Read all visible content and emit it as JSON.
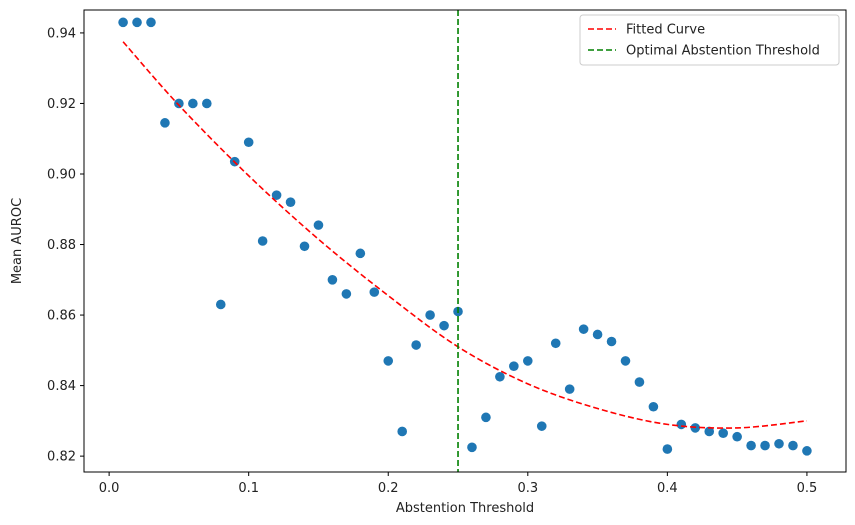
{
  "chart_data": {
    "type": "scatter",
    "xlabel": "Abstention Threshold",
    "ylabel": "Mean AUROC",
    "xlim": [
      -0.018,
      0.528
    ],
    "ylim": [
      0.8155,
      0.9465
    ],
    "xticks": [
      0,
      0.1,
      0.2,
      0.3,
      0.4,
      0.5
    ],
    "xtick_labels": [
      "0.0",
      "0.1",
      "0.2",
      "0.3",
      "0.4",
      "0.5"
    ],
    "yticks": [
      0.82,
      0.84,
      0.86,
      0.88,
      0.9,
      0.92,
      0.94
    ],
    "ytick_labels": [
      "0.82",
      "0.84",
      "0.86",
      "0.88",
      "0.90",
      "0.92",
      "0.94"
    ],
    "grid": false,
    "legend_position": "top-right",
    "points": {
      "color": "#1f77b4",
      "x": [
        0.01,
        0.02,
        0.03,
        0.04,
        0.05,
        0.06,
        0.07,
        0.08,
        0.09,
        0.1,
        0.11,
        0.12,
        0.13,
        0.14,
        0.15,
        0.16,
        0.17,
        0.18,
        0.19,
        0.2,
        0.21,
        0.22,
        0.23,
        0.24,
        0.25,
        0.26,
        0.27,
        0.28,
        0.29,
        0.3,
        0.31,
        0.32,
        0.33,
        0.34,
        0.35,
        0.36,
        0.37,
        0.38,
        0.39,
        0.4,
        0.41,
        0.42,
        0.43,
        0.44,
        0.45,
        0.46,
        0.47,
        0.48,
        0.49,
        0.5
      ],
      "y": [
        0.943,
        0.943,
        0.943,
        0.9145,
        0.92,
        0.92,
        0.92,
        0.863,
        0.9035,
        0.909,
        0.881,
        0.894,
        0.892,
        0.8795,
        0.8855,
        0.87,
        0.866,
        0.8775,
        0.8665,
        0.847,
        0.827,
        0.8515,
        0.86,
        0.857,
        0.861,
        0.8225,
        0.831,
        0.8425,
        0.8455,
        0.847,
        0.8285,
        0.852,
        0.839,
        0.856,
        0.8545,
        0.8525,
        0.847,
        0.841,
        0.834,
        0.822,
        0.829,
        0.828,
        0.827,
        0.8265,
        0.8255,
        0.823,
        0.823,
        0.8235,
        0.823,
        0.8215
      ]
    },
    "fitted_curve": {
      "name": "Fitted Curve",
      "color": "#ff0000",
      "style": "dashed",
      "x": [
        0.01,
        0.05,
        0.1,
        0.15,
        0.2,
        0.25,
        0.3,
        0.35,
        0.4,
        0.45,
        0.5
      ],
      "y": [
        0.9375,
        0.9195,
        0.8995,
        0.8815,
        0.8655,
        0.851,
        0.8405,
        0.8335,
        0.829,
        0.828,
        0.83
      ]
    },
    "threshold_line": {
      "name": "Optimal Abstention Threshold",
      "color": "#008000",
      "style": "dashed",
      "x": 0.25
    }
  }
}
